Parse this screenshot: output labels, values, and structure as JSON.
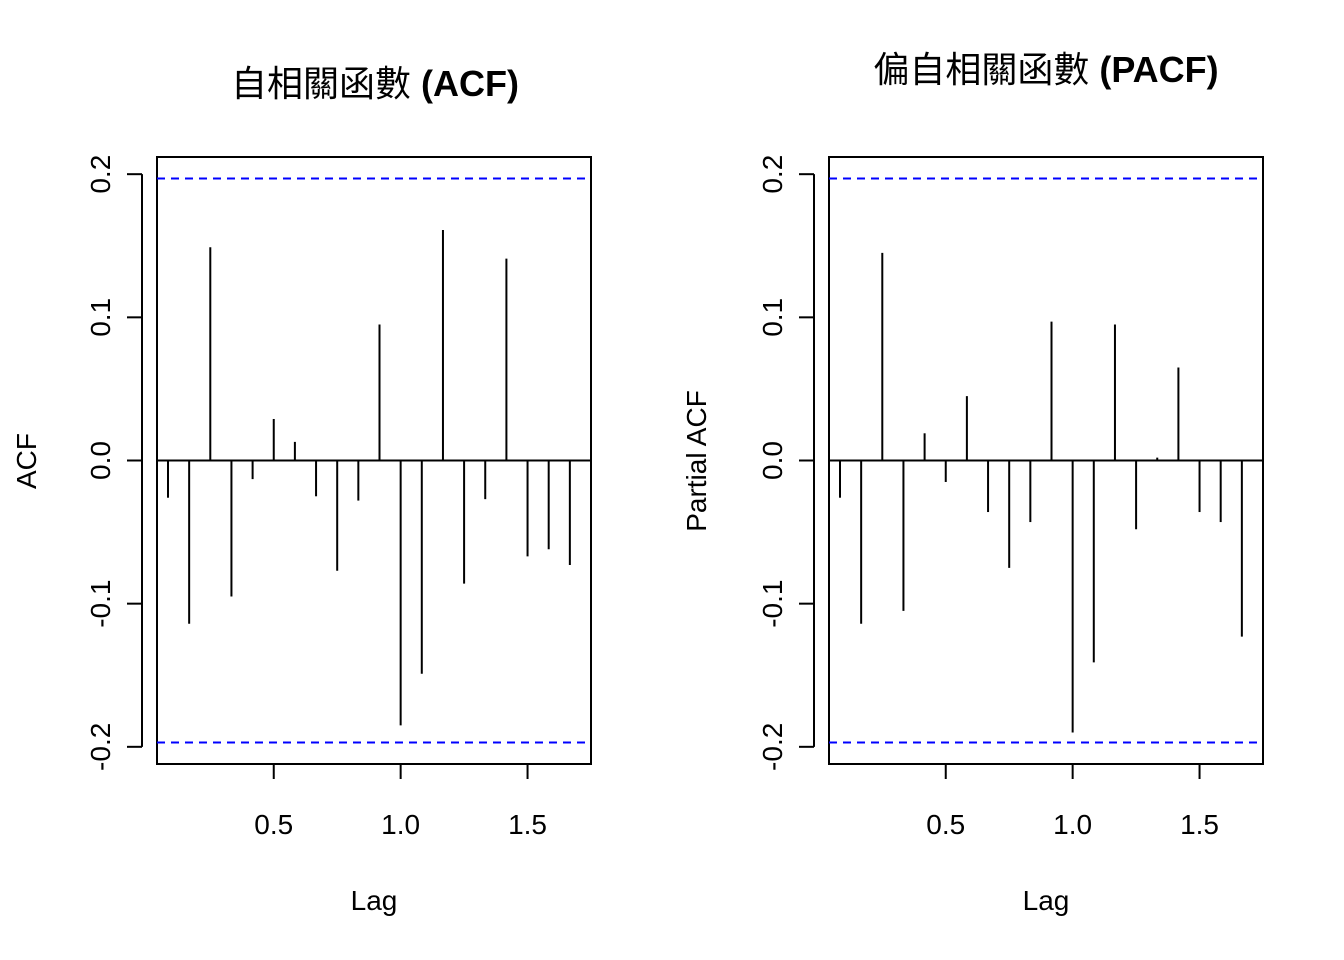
{
  "colors": {
    "bars": "#000000",
    "ci": "#0000ff",
    "background": "#ffffff"
  },
  "chart_data": [
    {
      "type": "bar",
      "id": "acf",
      "title_main": "自相關函數",
      "title_sub": "(ACF)",
      "xlabel": "Lag",
      "ylabel": "ACF",
      "xlim": [
        0.04,
        1.75
      ],
      "ylim": [
        -0.212,
        0.212
      ],
      "xticks": [
        0.5,
        1.0,
        1.5
      ],
      "xtick_labels": [
        "0.5",
        "1.0",
        "1.5"
      ],
      "yticks": [
        -0.2,
        -0.1,
        0.0,
        0.1,
        0.2
      ],
      "ytick_labels": [
        "-0.2",
        "-0.1",
        "0.0",
        "0.1",
        "0.2"
      ],
      "ci": 0.197,
      "lags": [
        0.0833,
        0.1667,
        0.25,
        0.3333,
        0.4167,
        0.5,
        0.5833,
        0.6667,
        0.75,
        0.8333,
        0.9167,
        1.0,
        1.0833,
        1.1667,
        1.25,
        1.3333,
        1.4167,
        1.5,
        1.5833,
        1.6667
      ],
      "values": [
        -0.026,
        -0.114,
        0.149,
        -0.095,
        -0.013,
        0.029,
        0.013,
        -0.025,
        -0.077,
        -0.028,
        0.095,
        -0.185,
        -0.149,
        0.161,
        -0.086,
        -0.027,
        0.141,
        -0.067,
        -0.062,
        -0.073
      ]
    },
    {
      "type": "bar",
      "id": "pacf",
      "title_main": "偏自相關函數",
      "title_sub": "(PACF)",
      "xlabel": "Lag",
      "ylabel": "Partial ACF",
      "xlim": [
        0.04,
        1.75
      ],
      "ylim": [
        -0.212,
        0.212
      ],
      "xticks": [
        0.5,
        1.0,
        1.5
      ],
      "xtick_labels": [
        "0.5",
        "1.0",
        "1.5"
      ],
      "yticks": [
        -0.2,
        -0.1,
        0.0,
        0.1,
        0.2
      ],
      "ytick_labels": [
        "-0.2",
        "-0.1",
        "0.0",
        "0.1",
        "0.2"
      ],
      "ci": 0.197,
      "lags": [
        0.0833,
        0.1667,
        0.25,
        0.3333,
        0.4167,
        0.5,
        0.5833,
        0.6667,
        0.75,
        0.8333,
        0.9167,
        1.0,
        1.0833,
        1.1667,
        1.25,
        1.3333,
        1.4167,
        1.5,
        1.5833,
        1.6667
      ],
      "values": [
        -0.026,
        -0.114,
        0.145,
        -0.105,
        0.019,
        -0.015,
        0.045,
        -0.036,
        -0.075,
        -0.043,
        0.097,
        -0.19,
        -0.141,
        0.095,
        -0.048,
        0.002,
        0.065,
        -0.036,
        -0.043,
        -0.123
      ]
    }
  ]
}
